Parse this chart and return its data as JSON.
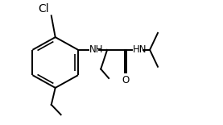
{
  "background_color": "#ffffff",
  "line_color": "#000000",
  "line_width": 1.4,
  "font_size": 8.5,
  "figsize": [
    2.77,
    1.55
  ],
  "dpi": 100,
  "xlim": [
    0,
    2.77
  ],
  "ylim": [
    0,
    1.55
  ]
}
